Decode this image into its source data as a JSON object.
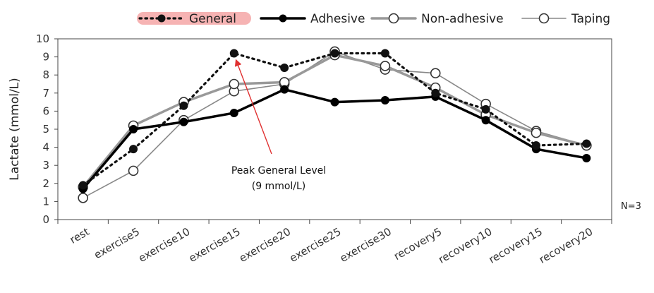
{
  "chart_data": {
    "type": "line",
    "title": "",
    "xlabel": "",
    "ylabel": "Lactate (mmol/L)",
    "ylim": [
      0,
      10
    ],
    "yticks": [
      "0",
      "1",
      "2",
      "3",
      "4",
      "5",
      "6",
      "7",
      "8",
      "9",
      "10"
    ],
    "grid": false,
    "legend_position": "top",
    "categories": [
      "rest",
      "exercise5",
      "exercise10",
      "exercise15",
      "exercise20",
      "exercise25",
      "exercise30",
      "recovery5",
      "recovery10",
      "recovery15",
      "recovery20"
    ],
    "series": [
      {
        "name": "General",
        "color": "#111111",
        "style": "dotted",
        "marker": "filled-circle",
        "highlight": "#f4a6a6",
        "values": [
          1.9,
          3.9,
          6.3,
          9.2,
          8.4,
          9.2,
          9.2,
          7.0,
          6.1,
          4.1,
          4.2
        ]
      },
      {
        "name": "Adhesive",
        "color": "#000000",
        "style": "solid-thick",
        "marker": "filled-circle",
        "values": [
          1.7,
          5.0,
          5.4,
          5.9,
          7.2,
          6.5,
          6.6,
          6.8,
          5.5,
          3.9,
          3.4
        ]
      },
      {
        "name": "Non-adhesive",
        "color": "#999999",
        "style": "solid-thick",
        "marker": "open-circle",
        "values": [
          1.8,
          5.2,
          6.5,
          7.5,
          7.6,
          9.1,
          8.5,
          7.3,
          5.8,
          4.8,
          4.1
        ]
      },
      {
        "name": "Taping",
        "color": "#888888",
        "style": "solid-thin",
        "marker": "open-circle",
        "values": [
          1.2,
          2.7,
          5.5,
          7.1,
          7.5,
          9.3,
          8.3,
          8.1,
          6.4,
          4.9,
          4.1
        ]
      }
    ],
    "annotations": [
      {
        "text_lines": [
          "Peak General Level",
          "(9 mmol/L)"
        ],
        "points_to_series": "General",
        "points_to_category": "exercise15",
        "arrow_color": "#e03030"
      }
    ],
    "note": "N=3"
  }
}
